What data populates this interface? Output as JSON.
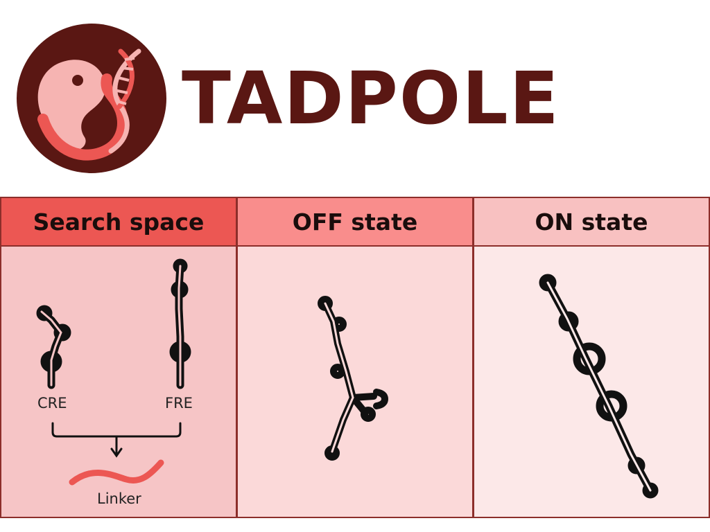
{
  "header": {
    "title": "TADPOLE"
  },
  "logo": {
    "icon": "tadpole-dna-logo",
    "bg_color": "#5a1713",
    "accent_colors": [
      "#f6b4b2",
      "#ec5753"
    ]
  },
  "panels": [
    {
      "title": "Search space",
      "labels": {
        "left": "CRE",
        "right": "FRE",
        "bottom": "Linker"
      }
    },
    {
      "title": "OFF state"
    },
    {
      "title": "ON state"
    }
  ],
  "colors": {
    "border": "#8c2e2a",
    "title": "#5a1713",
    "linker": "#ec5753"
  }
}
